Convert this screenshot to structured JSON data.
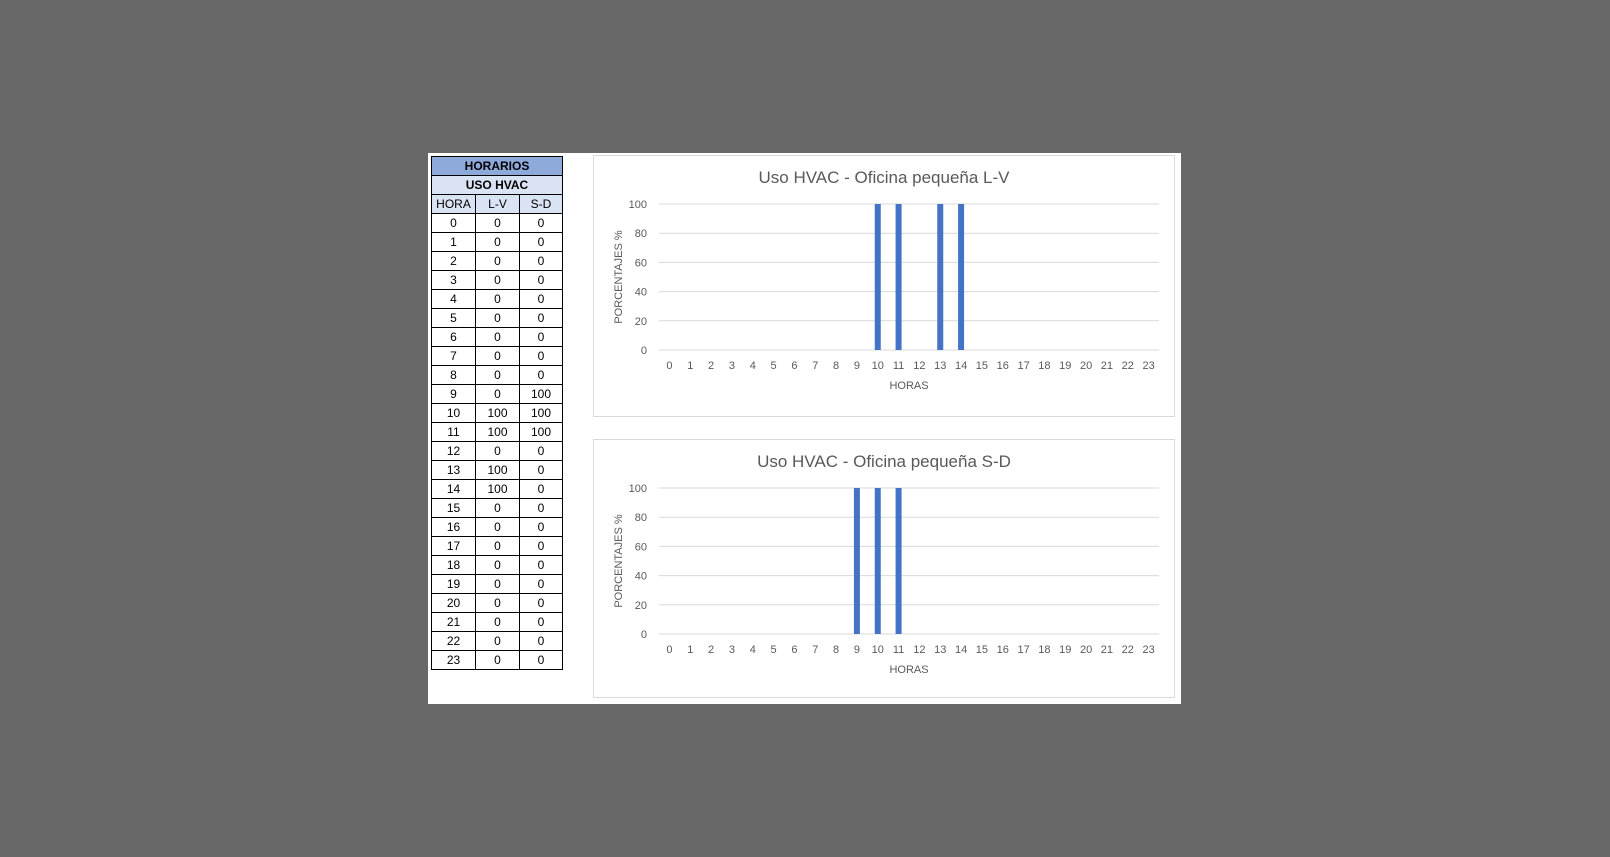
{
  "table": {
    "title": "HORARIOS",
    "subtitle": "USO HVAC",
    "columns": [
      "HORA",
      "L-V",
      "S-D"
    ],
    "rows": [
      [
        "0",
        "0",
        "0"
      ],
      [
        "1",
        "0",
        "0"
      ],
      [
        "2",
        "0",
        "0"
      ],
      [
        "3",
        "0",
        "0"
      ],
      [
        "4",
        "0",
        "0"
      ],
      [
        "5",
        "0",
        "0"
      ],
      [
        "6",
        "0",
        "0"
      ],
      [
        "7",
        "0",
        "0"
      ],
      [
        "8",
        "0",
        "0"
      ],
      [
        "9",
        "0",
        "100"
      ],
      [
        "10",
        "100",
        "100"
      ],
      [
        "11",
        "100",
        "100"
      ],
      [
        "12",
        "0",
        "0"
      ],
      [
        "13",
        "100",
        "0"
      ],
      [
        "14",
        "100",
        "0"
      ],
      [
        "15",
        "0",
        "0"
      ],
      [
        "16",
        "0",
        "0"
      ],
      [
        "17",
        "0",
        "0"
      ],
      [
        "18",
        "0",
        "0"
      ],
      [
        "19",
        "0",
        "0"
      ],
      [
        "20",
        "0",
        "0"
      ],
      [
        "21",
        "0",
        "0"
      ],
      [
        "22",
        "0",
        "0"
      ],
      [
        "23",
        "0",
        "0"
      ]
    ]
  },
  "chart_data": [
    {
      "type": "bar",
      "title": "Uso HVAC - Oficina pequeña L-V",
      "xlabel": "HORAS",
      "ylabel": "PORCENTAJES %",
      "categories": [
        "0",
        "1",
        "2",
        "3",
        "4",
        "5",
        "6",
        "7",
        "8",
        "9",
        "10",
        "11",
        "12",
        "13",
        "14",
        "15",
        "16",
        "17",
        "18",
        "19",
        "20",
        "21",
        "22",
        "23"
      ],
      "values": [
        0,
        0,
        0,
        0,
        0,
        0,
        0,
        0,
        0,
        0,
        100,
        100,
        0,
        100,
        100,
        0,
        0,
        0,
        0,
        0,
        0,
        0,
        0,
        0
      ],
      "ylim": [
        0,
        100
      ],
      "yticks": [
        0,
        20,
        40,
        60,
        80,
        100
      ],
      "grid": true,
      "color": "#4472c4"
    },
    {
      "type": "bar",
      "title": "Uso HVAC - Oficina pequeña S-D",
      "xlabel": "HORAS",
      "ylabel": "PORCENTAJES %",
      "categories": [
        "0",
        "1",
        "2",
        "3",
        "4",
        "5",
        "6",
        "7",
        "8",
        "9",
        "10",
        "11",
        "12",
        "13",
        "14",
        "15",
        "16",
        "17",
        "18",
        "19",
        "20",
        "21",
        "22",
        "23"
      ],
      "values": [
        0,
        0,
        0,
        0,
        0,
        0,
        0,
        0,
        0,
        100,
        100,
        100,
        0,
        0,
        0,
        0,
        0,
        0,
        0,
        0,
        0,
        0,
        0,
        0
      ],
      "ylim": [
        0,
        100
      ],
      "yticks": [
        0,
        20,
        40,
        60,
        80,
        100
      ],
      "grid": true,
      "color": "#4472c4"
    }
  ]
}
